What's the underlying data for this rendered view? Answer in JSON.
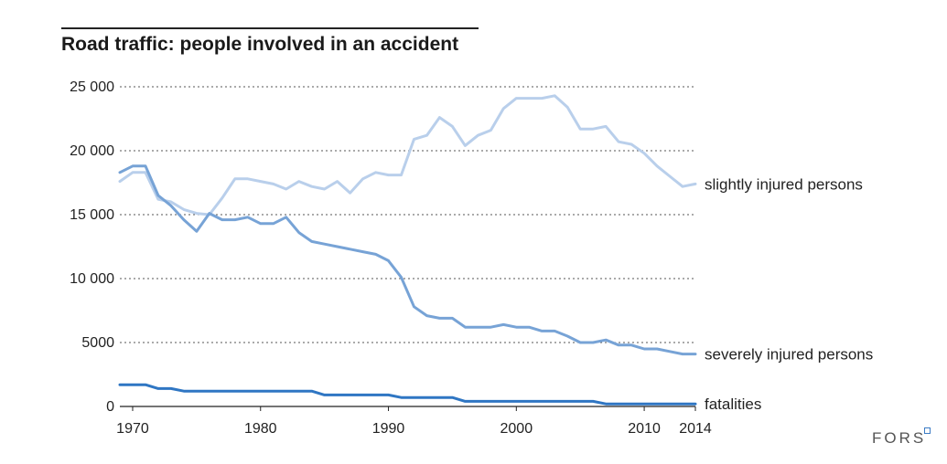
{
  "title": "Road traffic: people involved in an accident",
  "logo": "FORS",
  "colors": {
    "slightly": "#b9cfeb",
    "severely": "#77a3d6",
    "fatalities": "#2f76c3",
    "grid": "#555555"
  },
  "chart_data": {
    "type": "line",
    "title": "Road traffic: people involved in an accident",
    "xlabel": "",
    "ylabel": "",
    "xlim": [
      1969,
      2014
    ],
    "ylim": [
      0,
      25000
    ],
    "y_ticks": [
      0,
      5000,
      10000,
      15000,
      20000,
      25000
    ],
    "y_tick_labels": [
      "0",
      "5000",
      "10 000",
      "15 000",
      "20 000",
      "25 000"
    ],
    "x_ticks": [
      1970,
      1980,
      1990,
      2000,
      2010,
      2014
    ],
    "x_tick_labels": [
      "1970",
      "1980",
      "1990",
      "2000",
      "2010",
      "2014"
    ],
    "grid": "horizontal dotted",
    "legend": "direct labels at line ends",
    "x": [
      1969,
      1970,
      1971,
      1972,
      1973,
      1974,
      1975,
      1976,
      1977,
      1978,
      1979,
      1980,
      1981,
      1982,
      1983,
      1984,
      1985,
      1986,
      1987,
      1988,
      1989,
      1990,
      1991,
      1992,
      1993,
      1994,
      1995,
      1996,
      1997,
      1998,
      1999,
      2000,
      2001,
      2002,
      2003,
      2004,
      2005,
      2006,
      2007,
      2008,
      2009,
      2010,
      2011,
      2012,
      2013,
      2014
    ],
    "series": [
      {
        "name": "slightly injured persons",
        "values": [
          17600,
          18300,
          18300,
          16200,
          16000,
          15400,
          15100,
          15000,
          16300,
          17800,
          17800,
          17600,
          17400,
          17000,
          17600,
          17200,
          17000,
          17600,
          16700,
          17800,
          18300,
          18100,
          18100,
          20900,
          21200,
          22600,
          21900,
          20400,
          21200,
          21600,
          23300,
          24100,
          24100,
          24100,
          24300,
          23400,
          21700,
          21700,
          21900,
          20700,
          20500,
          19800,
          18800,
          18000,
          17200,
          17400
        ]
      },
      {
        "name": "severely injured persons",
        "values": [
          18300,
          18800,
          18800,
          16500,
          15700,
          14600,
          13700,
          15100,
          14600,
          14600,
          14800,
          14300,
          14300,
          14800,
          13600,
          12900,
          12700,
          12500,
          12300,
          12100,
          11900,
          11400,
          10100,
          7800,
          7100,
          6900,
          6900,
          6200,
          6200,
          6200,
          6400,
          6200,
          6200,
          5900,
          5900,
          5500,
          5000,
          5000,
          5200,
          4800,
          4800,
          4500,
          4500,
          4300,
          4100,
          4100
        ]
      },
      {
        "name": "fatalities",
        "values": [
          1700,
          1700,
          1700,
          1400,
          1400,
          1200,
          1200,
          1200,
          1200,
          1200,
          1200,
          1200,
          1200,
          1200,
          1200,
          1200,
          900,
          900,
          900,
          900,
          900,
          900,
          700,
          700,
          700,
          700,
          700,
          400,
          400,
          400,
          400,
          400,
          400,
          400,
          400,
          400,
          400,
          400,
          200,
          200,
          200,
          200,
          200,
          200,
          200,
          200
        ]
      }
    ]
  }
}
